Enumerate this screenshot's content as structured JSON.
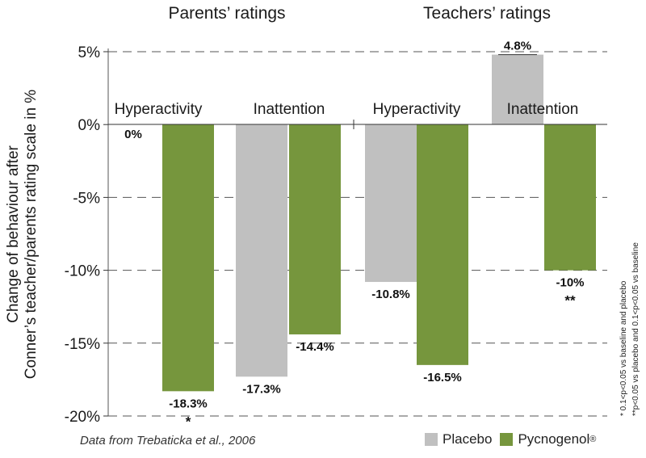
{
  "chart_data": {
    "type": "bar",
    "ylabel_line1": "Change of behaviour after",
    "ylabel_line2": "Conner’s teacher/parents rating scale in %",
    "ylim": [
      -20,
      5
    ],
    "yticks": [
      {
        "value": 5,
        "label": "5%"
      },
      {
        "value": 0,
        "label": "0%"
      },
      {
        "value": -5,
        "label": "-5%"
      },
      {
        "value": -10,
        "label": "-10%"
      },
      {
        "value": -15,
        "label": "-15%"
      },
      {
        "value": -20,
        "label": "-20%"
      }
    ],
    "grid": true,
    "legend_position": "bottom-right",
    "groups": [
      {
        "title": "Parents’ ratings",
        "categories": [
          "Hyperactivity",
          "Inattention"
        ]
      },
      {
        "title": "Teachers’ ratings",
        "categories": [
          "Hyperactivity",
          "Inattention"
        ]
      }
    ],
    "series": [
      {
        "name": "Placebo",
        "color": "#c0c0c0",
        "values": [
          0,
          -17.3,
          -10.8,
          4.8
        ],
        "labels": [
          "0%",
          "-17.3%",
          "-10.8%",
          "4.8%"
        ],
        "markers": [
          "",
          "",
          "",
          ""
        ]
      },
      {
        "name": "Pycnogenol",
        "color": "#76963d",
        "values": [
          -18.3,
          -14.4,
          -16.5,
          -10
        ],
        "labels": [
          "-18.3%",
          "-14.4%",
          "-16.5%",
          "-10%"
        ],
        "markers": [
          "*",
          "",
          "",
          "**"
        ]
      }
    ],
    "legend": {
      "placebo": "Placebo",
      "pycnogenol": "Pycnogenol",
      "pycnogenol_sup": "®"
    },
    "source": "Data from Trebaticka et al., 2006",
    "footnotes": [
      "* 0.1<p<0.05 vs baseline and placebo",
      "**p<0.05 vs placebo and 0.1<p<0.05 vs baseline"
    ]
  }
}
